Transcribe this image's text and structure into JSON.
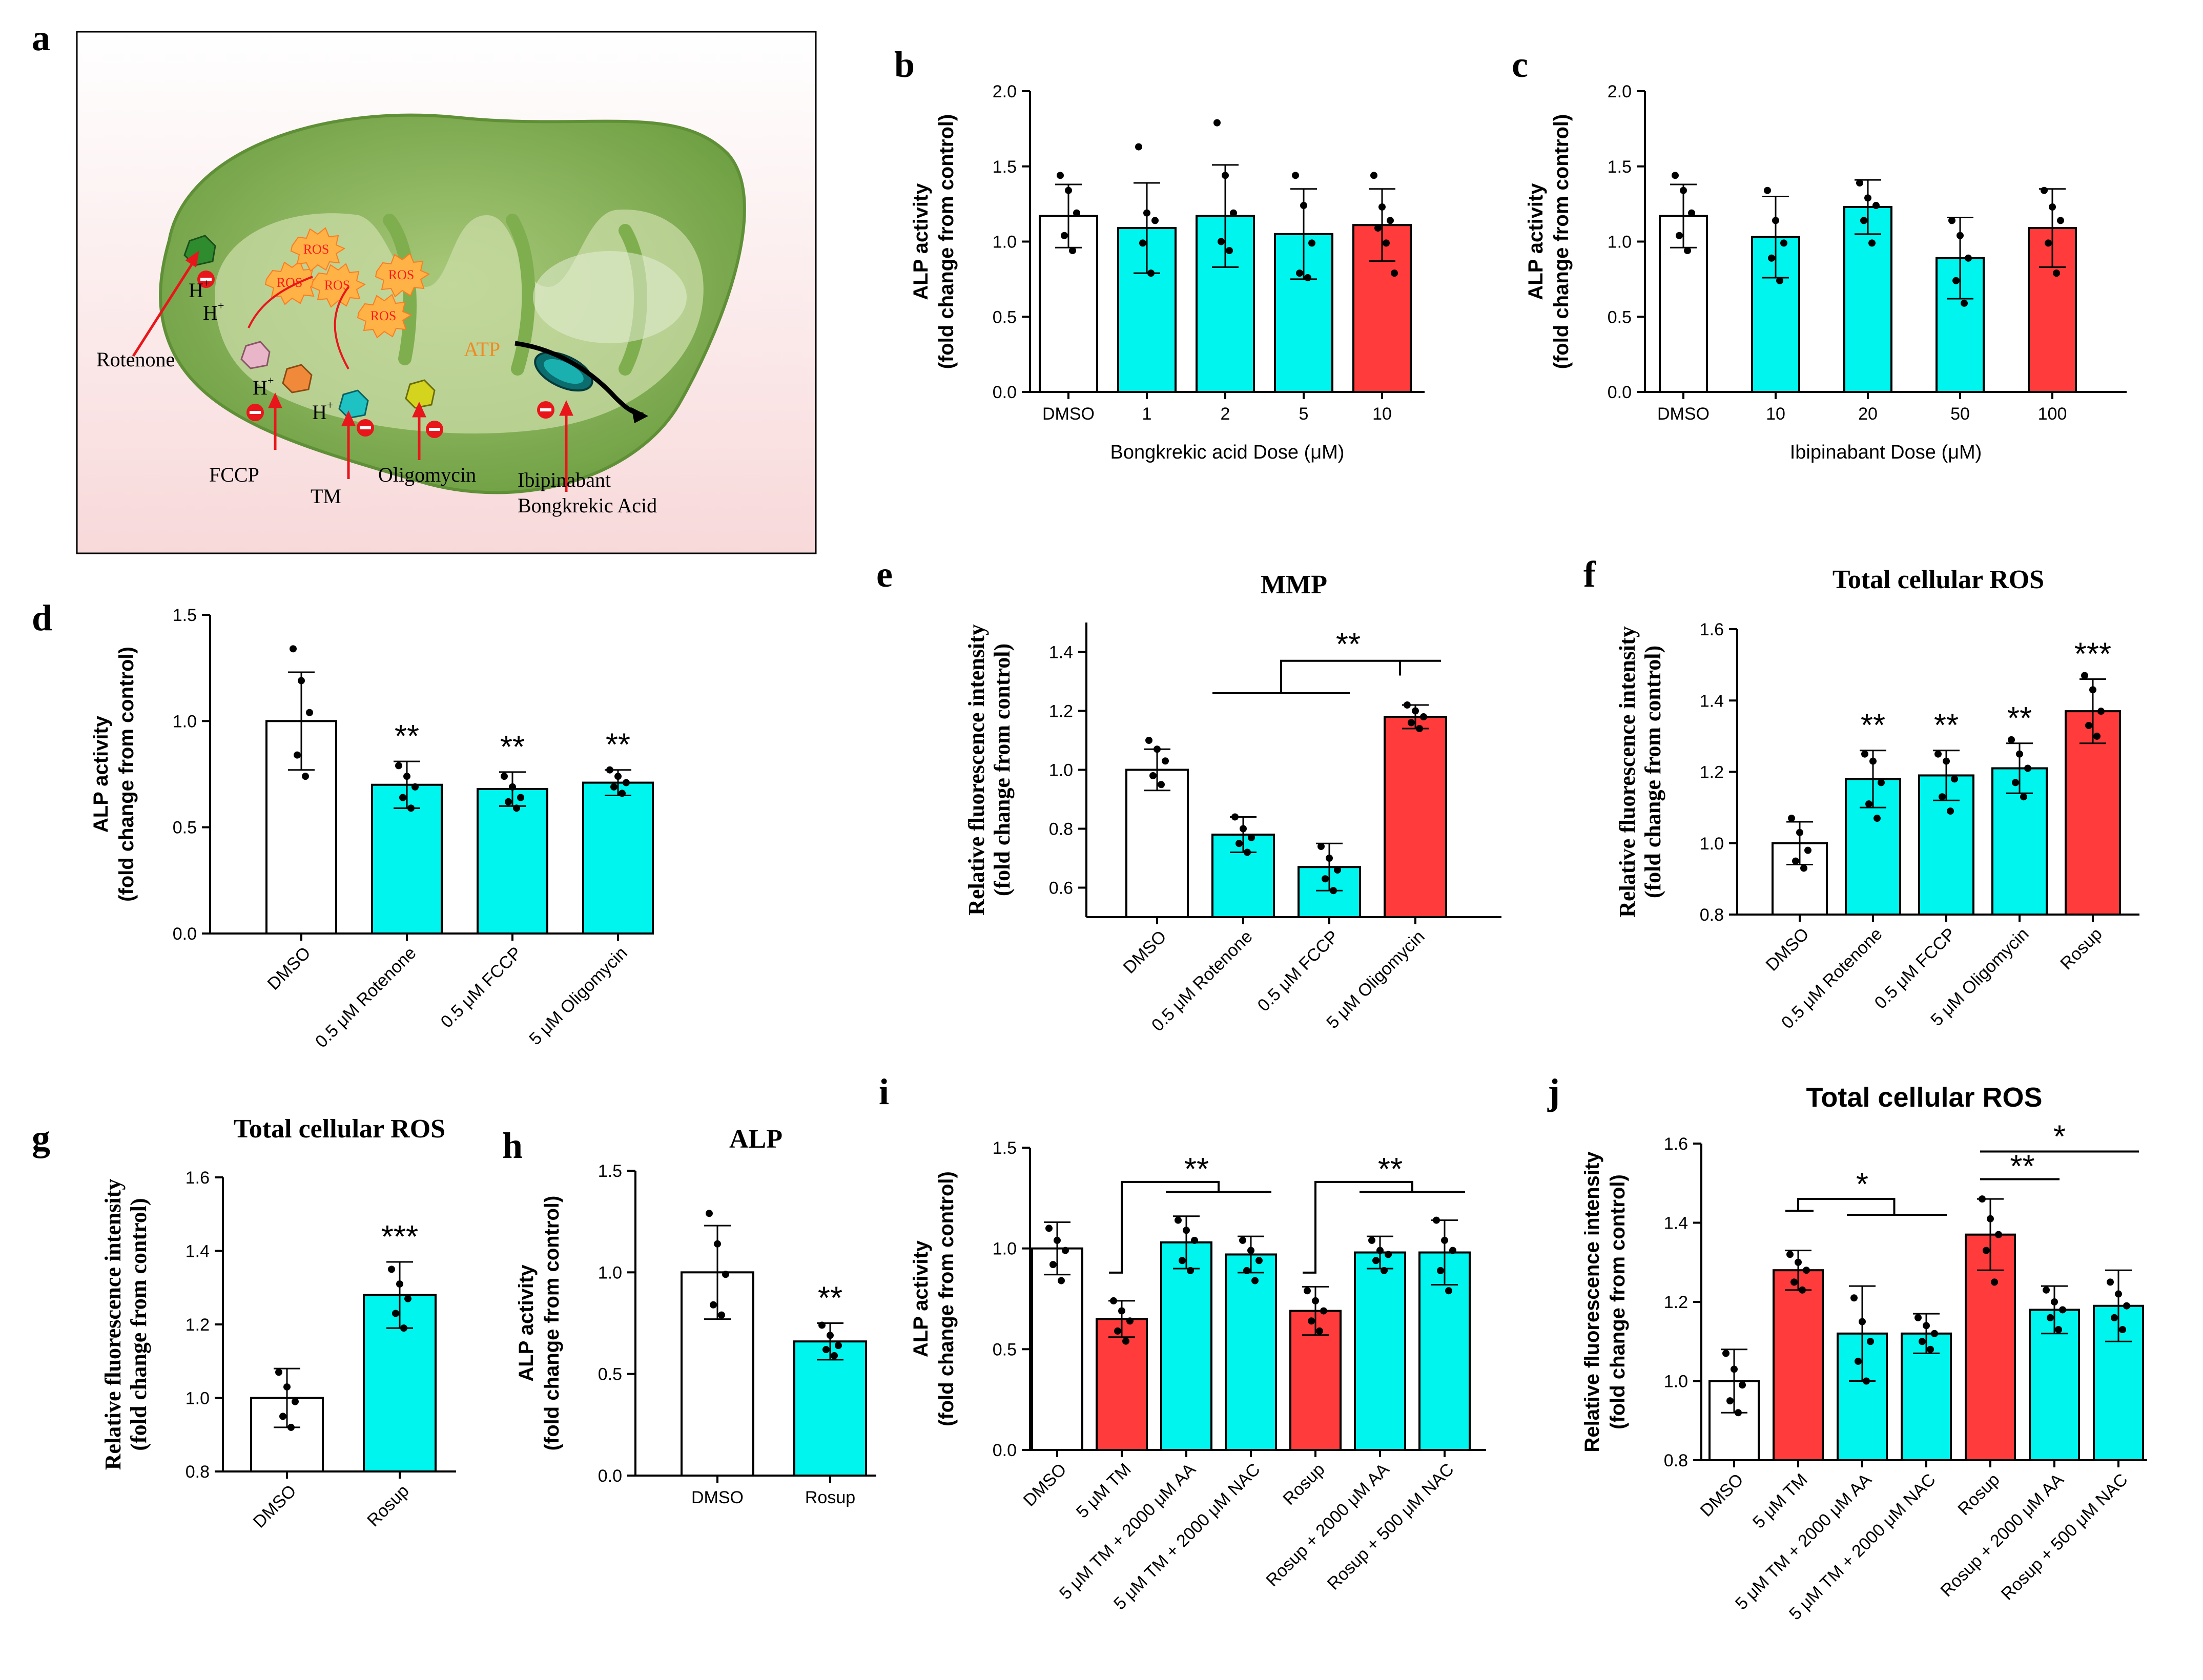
{
  "panel_a": {
    "label": "a",
    "labels": {
      "rotenone": "Rotenone",
      "fccp": "FCCP",
      "tm": "TM",
      "oligomycin": "Oligomycin",
      "ibipinabant": "Ibipinabant",
      "bongkrekic": "Bongkrekic Acid",
      "atp": "ATP",
      "ros": "ROS",
      "h": "H",
      "plus": "+"
    },
    "colors": {
      "mito": "#7fae4f",
      "mito_inner": "#c9dca6",
      "arrow": "#e8161b",
      "atp": "#f08a24",
      "ros_burst": "#ffb347"
    }
  },
  "chart_data": [
    {
      "id": "b",
      "label": "b",
      "type": "bar",
      "categories": [
        "DMSO",
        "1",
        "2",
        "5",
        "10"
      ],
      "values": [
        1.17,
        1.09,
        1.17,
        1.05,
        1.11
      ],
      "errors": [
        0.21,
        0.3,
        0.34,
        0.3,
        0.24
      ],
      "colors": [
        "#ffffff",
        "#00f5ee",
        "#00f5ee",
        "#00f5ee",
        "#ff3b3b"
      ],
      "points": [
        [
          1.44,
          1.34,
          1.19,
          1.04,
          0.94
        ],
        [
          1.63,
          1.19,
          1.14,
          0.99,
          0.79
        ],
        [
          1.79,
          1.44,
          1.19,
          1.0,
          0.94
        ],
        [
          1.44,
          1.24,
          0.99,
          0.79,
          0.76
        ],
        [
          1.44,
          1.23,
          1.14,
          1.09,
          0.99,
          0.79
        ]
      ],
      "ylim": [
        0,
        2.0
      ],
      "yticks": [
        "0.0",
        "0.5",
        "1.0",
        "1.5",
        "2.0"
      ],
      "ylabel": [
        "ALP activity",
        "(fold change from control)"
      ],
      "xlabel": "Bongkrekic acid Dose (μM)",
      "title": "",
      "sig": [
        "",
        "",
        "",
        "",
        ""
      ],
      "brackets": []
    },
    {
      "id": "c",
      "label": "c",
      "type": "bar",
      "categories": [
        "DMSO",
        "10",
        "20",
        "50",
        "100"
      ],
      "values": [
        1.17,
        1.03,
        1.23,
        0.89,
        1.09
      ],
      "errors": [
        0.21,
        0.27,
        0.18,
        0.27,
        0.26
      ],
      "colors": [
        "#ffffff",
        "#00f5ee",
        "#00f5ee",
        "#00f5ee",
        "#ff3b3b"
      ],
      "points": [
        [
          1.44,
          1.34,
          1.19,
          1.04,
          0.94
        ],
        [
          1.34,
          1.14,
          0.99,
          0.89,
          0.74
        ],
        [
          1.39,
          1.29,
          1.24,
          1.14,
          0.99
        ],
        [
          1.14,
          1.04,
          0.89,
          0.74,
          0.59
        ],
        [
          1.34,
          1.23,
          1.14,
          0.99,
          0.79
        ]
      ],
      "ylim": [
        0,
        2.0
      ],
      "yticks": [
        "0.0",
        "0.5",
        "1.0",
        "1.5",
        "2.0"
      ],
      "ylabel": [
        "ALP activity",
        "(fold change from control)"
      ],
      "xlabel": "Ibipinabant Dose (μM)",
      "title": "",
      "sig": [
        "",
        "",
        "",
        "",
        ""
      ],
      "brackets": []
    },
    {
      "id": "d",
      "label": "d",
      "type": "bar",
      "categories": [
        "DMSO",
        "0.5 μM Rotenone",
        "0.5 μM FCCP",
        "5 μM Oligomycin"
      ],
      "values": [
        1.0,
        0.7,
        0.68,
        0.71
      ],
      "errors": [
        0.23,
        0.11,
        0.08,
        0.06
      ],
      "colors": [
        "#ffffff",
        "#00f5ee",
        "#00f5ee",
        "#00f5ee"
      ],
      "points": [
        [
          1.34,
          1.19,
          1.04,
          0.84,
          0.74
        ],
        [
          0.79,
          0.74,
          0.69,
          0.64,
          0.59
        ],
        [
          0.74,
          0.69,
          0.64,
          0.62,
          0.59
        ],
        [
          0.77,
          0.74,
          0.71,
          0.69,
          0.66
        ]
      ],
      "ylim": [
        0,
        1.5
      ],
      "yticks": [
        "0.0",
        "0.5",
        "1.0",
        "1.5"
      ],
      "ylabel": [
        "ALP activity",
        "(fold change from control)"
      ],
      "xlabel": "",
      "title": "",
      "sig": [
        "",
        "**",
        "**",
        "**"
      ],
      "brackets": []
    },
    {
      "id": "e",
      "label": "e",
      "type": "bar",
      "categories": [
        "DMSO",
        "0.5 μM Rotenone",
        "0.5 μM FCCP",
        "5 μM Oligomycin"
      ],
      "values": [
        1.0,
        0.78,
        0.67,
        1.18
      ],
      "errors": [
        0.07,
        0.06,
        0.08,
        0.04
      ],
      "colors": [
        "#ffffff",
        "#00f5ee",
        "#00f5ee",
        "#ff3b3b"
      ],
      "points": [
        [
          1.1,
          1.07,
          1.03,
          0.98,
          0.95
        ],
        [
          0.84,
          0.8,
          0.77,
          0.75,
          0.72
        ],
        [
          0.74,
          0.7,
          0.66,
          0.63,
          0.59
        ],
        [
          1.22,
          1.2,
          1.18,
          1.16,
          1.14
        ]
      ],
      "ylim": [
        0.5,
        1.5
      ],
      "yticks": [
        "0.6",
        "0.8",
        "1.0",
        "1.2",
        "1.4"
      ],
      "ytick_values": [
        0.6,
        0.8,
        1.0,
        1.2,
        1.4
      ],
      "ylabel": [
        "Relative fluorescence intensity",
        "(fold change from control)"
      ],
      "xlabel": "",
      "title": "MMP",
      "sig": [
        "",
        "",
        "",
        ""
      ],
      "brackets": [
        {
          "text": "**"
        }
      ]
    },
    {
      "id": "f",
      "label": "f",
      "type": "bar",
      "categories": [
        "DMSO",
        "0.5 μM Rotenone",
        "0.5 μM FCCP",
        "5 μM Oligomycin",
        "Rosup"
      ],
      "values": [
        1.0,
        1.18,
        1.19,
        1.21,
        1.37
      ],
      "errors": [
        0.06,
        0.08,
        0.07,
        0.07,
        0.09
      ],
      "colors": [
        "#ffffff",
        "#00f5ee",
        "#00f5ee",
        "#00f5ee",
        "#ff3b3b"
      ],
      "points": [
        [
          1.07,
          1.03,
          0.98,
          0.95,
          0.93
        ],
        [
          1.25,
          1.23,
          1.17,
          1.11,
          1.07
        ],
        [
          1.25,
          1.23,
          1.18,
          1.13,
          1.09
        ],
        [
          1.29,
          1.25,
          1.21,
          1.17,
          1.13
        ],
        [
          1.47,
          1.43,
          1.37,
          1.33,
          1.3
        ]
      ],
      "ylim": [
        0.8,
        1.6
      ],
      "yticks": [
        "0.8",
        "1.0",
        "1.2",
        "1.4",
        "1.6"
      ],
      "ylabel": [
        "Relative fluorescence intensity",
        "(fold change from control)"
      ],
      "xlabel": "",
      "title": "Total cellular ROS",
      "sig": [
        "",
        "**",
        "**",
        "**",
        "***"
      ],
      "brackets": []
    },
    {
      "id": "g",
      "label": "g",
      "type": "bar",
      "categories": [
        "DMSO",
        "Rosup"
      ],
      "values": [
        1.0,
        1.28
      ],
      "errors": [
        0.08,
        0.09
      ],
      "colors": [
        "#ffffff",
        "#00f5ee"
      ],
      "points": [
        [
          1.07,
          1.03,
          0.99,
          0.95,
          0.92
        ],
        [
          1.35,
          1.31,
          1.27,
          1.23,
          1.19
        ]
      ],
      "ylim": [
        0.8,
        1.6
      ],
      "yticks": [
        "0.8",
        "1.0",
        "1.2",
        "1.4",
        "1.6"
      ],
      "ylabel": [
        "Relative fluorescence intensity",
        "(fold change from control)"
      ],
      "xlabel": "",
      "title": "Total cellular ROS",
      "sig": [
        "",
        "***"
      ],
      "brackets": []
    },
    {
      "id": "h",
      "label": "h",
      "type": "bar",
      "categories": [
        "DMSO",
        "Rosup"
      ],
      "values": [
        1.0,
        0.66
      ],
      "errors": [
        0.23,
        0.09
      ],
      "colors": [
        "#ffffff",
        "#00f5ee"
      ],
      "points": [
        [
          1.29,
          1.14,
          0.99,
          0.84,
          0.79
        ],
        [
          0.74,
          0.69,
          0.64,
          0.62,
          0.59
        ]
      ],
      "ylim": [
        0,
        1.5
      ],
      "yticks": [
        "0.0",
        "0.5",
        "1.0",
        "1.5"
      ],
      "ylabel": [
        "ALP activity",
        "(fold change from control)"
      ],
      "xlabel": "",
      "title": "ALP",
      "sig": [
        "",
        "**"
      ],
      "brackets": []
    },
    {
      "id": "i",
      "label": "i",
      "type": "bar",
      "categories": [
        "DMSO",
        "5 μM TM",
        "5 μM TM + 2000 μM AA",
        "5 μM TM + 2000 μM NAC",
        "Rosup",
        "Rosup + 2000 μM AA",
        "Rosup + 500 μM NAC"
      ],
      "values": [
        1.0,
        0.65,
        1.03,
        0.97,
        0.69,
        0.98,
        0.98
      ],
      "errors": [
        0.13,
        0.09,
        0.13,
        0.09,
        0.12,
        0.08,
        0.16
      ],
      "colors": [
        "#ffffff",
        "#ff3b3b",
        "#00f5ee",
        "#00f5ee",
        "#ff3b3b",
        "#00f5ee",
        "#00f5ee"
      ],
      "points": [
        [
          1.1,
          1.04,
          0.99,
          0.92,
          0.84
        ],
        [
          0.74,
          0.69,
          0.64,
          0.59,
          0.54
        ],
        [
          1.14,
          1.09,
          1.04,
          0.94,
          0.89
        ],
        [
          1.04,
          0.99,
          0.94,
          0.89,
          0.84
        ],
        [
          0.79,
          0.74,
          0.69,
          0.64,
          0.59
        ],
        [
          1.04,
          0.99,
          0.97,
          0.94,
          0.89
        ],
        [
          1.14,
          1.04,
          0.99,
          0.89,
          0.79
        ]
      ],
      "ylim": [
        0,
        1.5
      ],
      "yticks": [
        "0.0",
        "0.5",
        "1.0",
        "1.5"
      ],
      "ylabel": [
        "ALP activity",
        "(fold change from control)"
      ],
      "xlabel": "",
      "title": "",
      "sig": [
        "",
        "",
        "",
        "",
        "",
        "",
        ""
      ],
      "brackets": [
        {
          "text": "**"
        },
        {
          "text": "**"
        }
      ]
    },
    {
      "id": "j",
      "label": "j",
      "type": "bar",
      "categories": [
        "DMSO",
        "5 μM TM",
        "5 μM TM + 2000 μM AA",
        "5 μM TM + 2000 μM NAC",
        "Rosup",
        "Rosup + 2000 μM AA",
        "Rosup + 500 μM NAC"
      ],
      "values": [
        1.0,
        1.28,
        1.12,
        1.12,
        1.37,
        1.18,
        1.19
      ],
      "errors": [
        0.08,
        0.05,
        0.12,
        0.05,
        0.09,
        0.06,
        0.09
      ],
      "colors": [
        "#ffffff",
        "#ff3b3b",
        "#00f5ee",
        "#00f5ee",
        "#ff3b3b",
        "#00f5ee",
        "#00f5ee"
      ],
      "points": [
        [
          1.07,
          1.03,
          0.99,
          0.95,
          0.92
        ],
        [
          1.32,
          1.3,
          1.28,
          1.25,
          1.23
        ],
        [
          1.21,
          1.15,
          1.1,
          1.05,
          1.0
        ],
        [
          1.16,
          1.14,
          1.12,
          1.1,
          1.08
        ],
        [
          1.46,
          1.41,
          1.37,
          1.33,
          1.25
        ],
        [
          1.23,
          1.2,
          1.18,
          1.16,
          1.13
        ],
        [
          1.25,
          1.22,
          1.19,
          1.16,
          1.13
        ]
      ],
      "ylim": [
        0.8,
        1.6
      ],
      "yticks": [
        "0.8",
        "1.0",
        "1.2",
        "1.4",
        "1.6"
      ],
      "ylabel": [
        "Relative fluorescence intensity",
        "(fold change from control)"
      ],
      "xlabel": "",
      "title": "Total cellular ROS",
      "sig": [
        "",
        "",
        "",
        "",
        "",
        "",
        ""
      ],
      "brackets": [
        {
          "text": "*"
        },
        {
          "text": "**"
        },
        {
          "text": "*"
        }
      ]
    }
  ]
}
